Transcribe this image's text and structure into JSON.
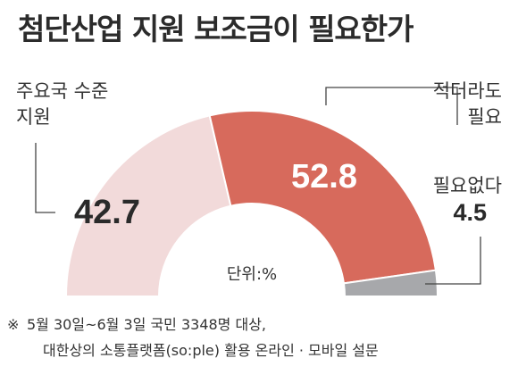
{
  "title": "첨단산업 지원 보조금이 필요한가",
  "unit": "단위:%",
  "footnote": {
    "mark": "※",
    "line1": "5월 30일~6월 3일 국민 3348명 대상,",
    "line2": "대한상의 소통플랫폼(so:ple) 활용 온라인 · 모바일 설문"
  },
  "chart_data": {
    "type": "pie",
    "variant": "semicircle-donut",
    "unit": "%",
    "slices": [
      {
        "label_lines": [
          "주요국 수준",
          "지원"
        ],
        "value": 42.7,
        "value_label": "42.7",
        "color": "#f2dada"
      },
      {
        "label_lines": [
          "적더라도",
          "필요"
        ],
        "value": 52.8,
        "value_label": "52.8",
        "color": "#d76a5c"
      },
      {
        "label_lines": [
          "필요없다"
        ],
        "value": 4.5,
        "value_label": "4.5",
        "color": "#a7a8ab"
      }
    ]
  }
}
